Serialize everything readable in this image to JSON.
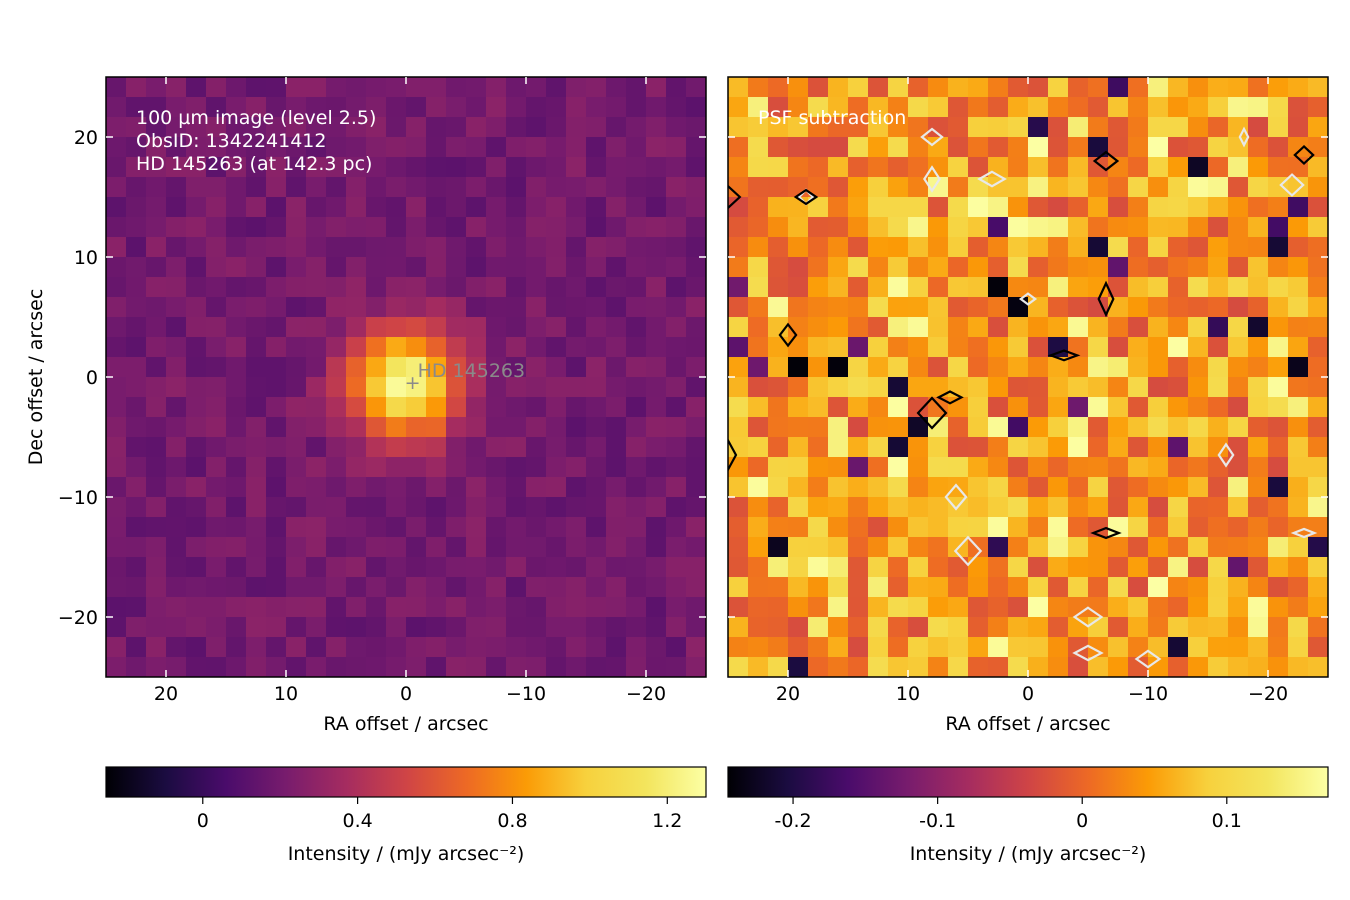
{
  "chart_data": [
    {
      "type": "heatmap",
      "panel": "left",
      "annotation_lines": [
        "100 µm image (level 2.5)",
        "ObsID: 1342241412",
        "HD 145263 (at 142.3 pc)"
      ],
      "star_label": "HD 145263",
      "star_position": [
        -0.3,
        -0.5
      ],
      "xlabel": "RA offset / arcsec",
      "ylabel": "Dec offset / arcsec",
      "xlim": [
        25,
        -25
      ],
      "ylim": [
        -25,
        25
      ],
      "xticks": [
        20,
        10,
        0,
        -10,
        -20
      ],
      "yticks": [
        20,
        10,
        0,
        -10,
        -20
      ],
      "xtick_labels": [
        "20",
        "10",
        "0",
        "−10",
        "−20"
      ],
      "ytick_labels": [
        "20",
        "10",
        "0",
        "−10",
        "−20"
      ],
      "grid_size": [
        30,
        30
      ],
      "colormap": "inferno",
      "source": {
        "x": 0,
        "y": -0.5,
        "peak": 1.05,
        "sigma_arcsec": 3.2
      },
      "background": {
        "mean": 0.2,
        "scatter": 0.08
      },
      "colorbar": {
        "label": "Intensity / (mJy arcsec⁻²)",
        "vmin": -0.25,
        "vmax": 1.3,
        "ticks": [
          0,
          0.4,
          0.8,
          1.2
        ],
        "tick_labels": [
          "0",
          "0.4",
          "0.8",
          "1.2"
        ]
      }
    },
    {
      "type": "heatmap",
      "panel": "right",
      "annotation_lines": [
        "PSF subtraction"
      ],
      "xlabel": "RA offset / arcsec",
      "xlim": [
        25,
        -25
      ],
      "ylim": [
        -25,
        25
      ],
      "xticks": [
        20,
        10,
        0,
        -10,
        -20
      ],
      "xtick_labels": [
        "20",
        "10",
        "0",
        "−10",
        "−20"
      ],
      "grid_size": [
        30,
        30
      ],
      "colormap": "inferno",
      "background": {
        "mean": 0.04,
        "scatter": 0.07
      },
      "contours": {
        "white": [
          [
            18.5,
            15
          ],
          [
            8,
            20
          ],
          [
            8,
            16.5
          ],
          [
            -18,
            20
          ],
          [
            3,
            16.5
          ],
          [
            -22,
            16
          ],
          [
            0,
            6.5
          ],
          [
            6,
            -10
          ],
          [
            5,
            -14.5
          ],
          [
            -5,
            -20
          ],
          [
            -5,
            -23
          ],
          [
            -10,
            -23.5
          ],
          [
            -23,
            -13
          ],
          [
            -16.5,
            -6.5
          ]
        ],
        "black": [
          [
            18.5,
            15
          ],
          [
            -23,
            18.5
          ],
          [
            -6.5,
            18
          ],
          [
            -6.5,
            6.5
          ],
          [
            20,
            3.5
          ],
          [
            -3,
            1.8
          ],
          [
            6.5,
            -1.7
          ],
          [
            8,
            -3
          ],
          [
            -6.5,
            -13
          ],
          [
            25,
            -6.5
          ],
          [
            25,
            15
          ]
        ]
      },
      "colorbar": {
        "label": "Intensity / (mJy arcsec⁻²)",
        "vmin": -0.245,
        "vmax": 0.17,
        "ticks": [
          -0.2,
          -0.1,
          0,
          0.1
        ],
        "tick_labels": [
          "-0.2",
          "-0.1",
          "0",
          "0.1"
        ]
      }
    }
  ]
}
